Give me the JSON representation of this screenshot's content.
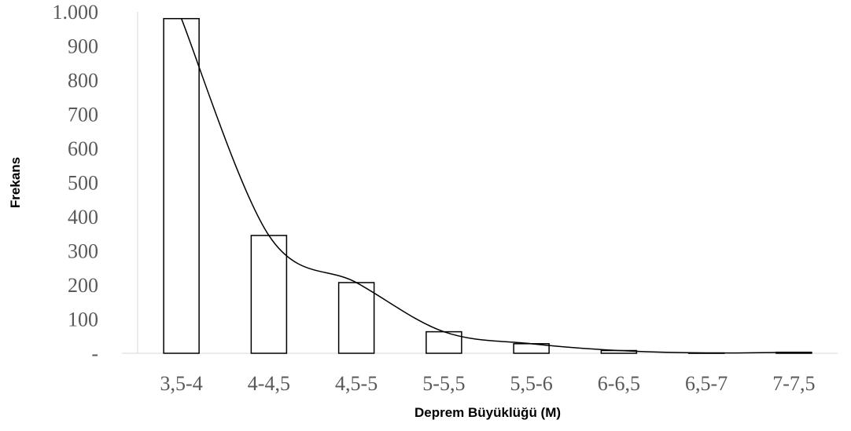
{
  "chart_data": {
    "type": "bar",
    "title": "",
    "xlabel": "Deprem Büyüklüğü (M)",
    "ylabel": "Frekans",
    "categories": [
      "3,5-4",
      "4-4,5",
      "4,5-5",
      "5-5,5",
      "5,5-6",
      "6-6,5",
      "6,5-7",
      "7-7,5"
    ],
    "values": [
      980,
      345,
      207,
      63,
      28,
      8,
      1,
      3
    ],
    "ylim": [
      0,
      1000
    ],
    "yticks": [
      0,
      100,
      200,
      300,
      400,
      500,
      600,
      700,
      800,
      900,
      1000
    ],
    "ytick_labels": [
      "-",
      "100",
      "200",
      "300",
      "400",
      "500",
      "600",
      "700",
      "800",
      "900",
      "1.000"
    ],
    "trend_line": true,
    "grid": false,
    "legend": "none",
    "colors": {
      "bar_fill": "#ffffff",
      "bar_stroke": "#000000",
      "line": "#000000",
      "axis": "#d9d9d9",
      "tick_text": "#595959"
    }
  }
}
